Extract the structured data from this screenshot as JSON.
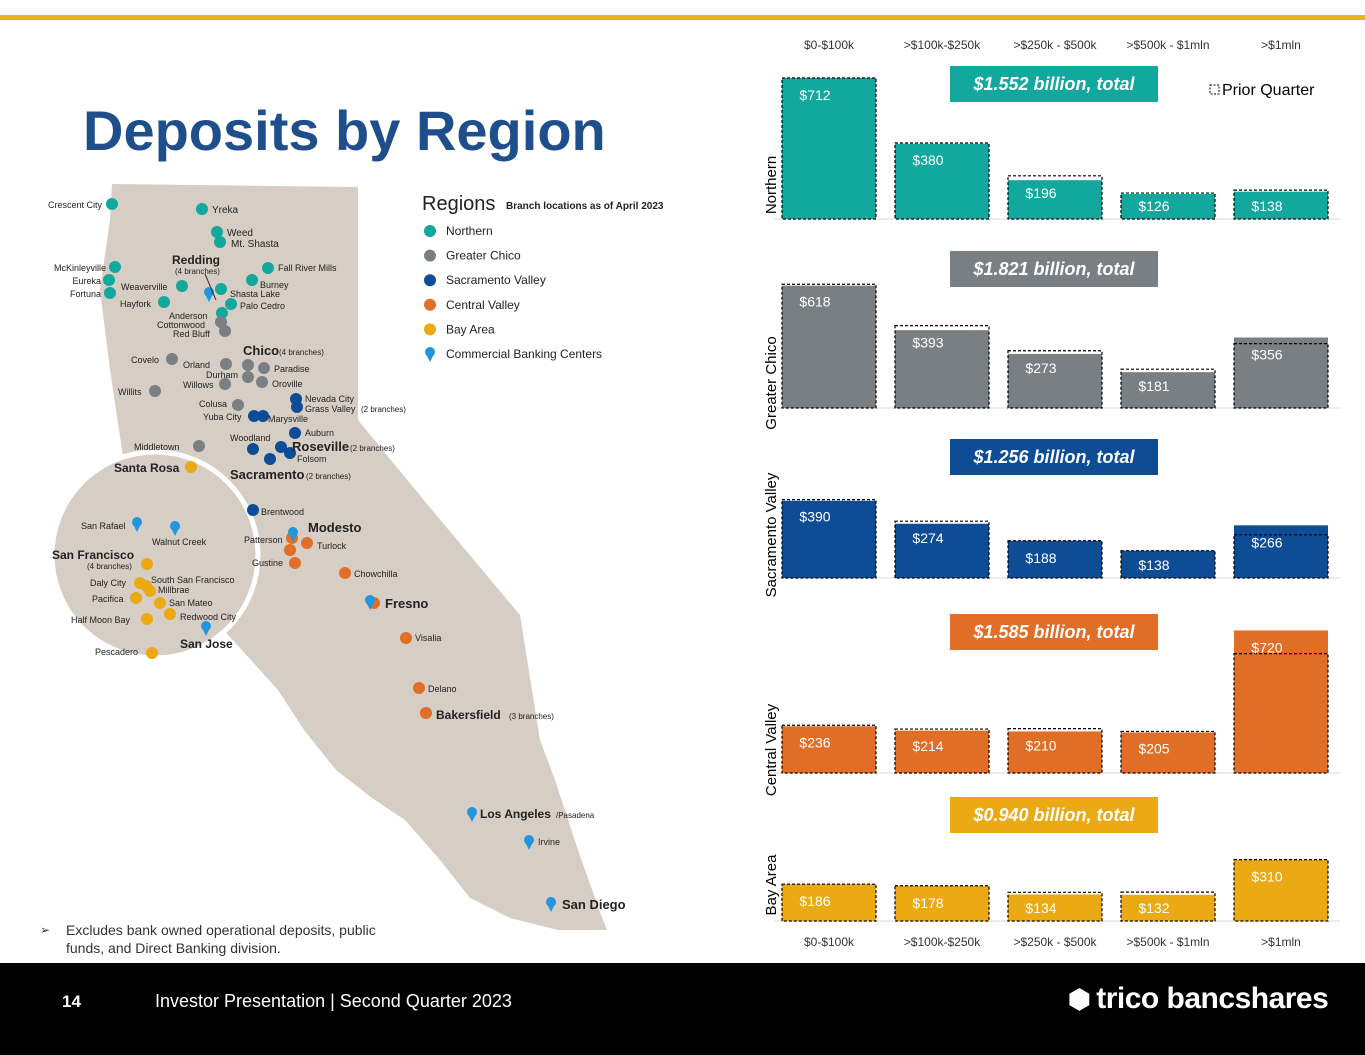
{
  "page": {
    "title": "Deposits by Region",
    "page_number": "14",
    "footer_text": "Investor Presentation | Second Quarter 2023",
    "brand": "trico bancshares",
    "note": "Excludes bank owned operational deposits, public funds, and Direct Banking division."
  },
  "colors": {
    "accent_line": "#E8B21E",
    "title": "#1F4E8C",
    "Northern": "#13A89E",
    "Greater Chico": "#7A7F84",
    "Sacramento Valley": "#0F4C96",
    "Central Valley": "#E06E27",
    "Bay Area": "#EBAA13",
    "Commercial Banking Centers": "#2196DD"
  },
  "map": {
    "legend_title": "Regions",
    "legend_subtitle": "Branch locations as of April 2023",
    "legend_items": [
      "Northern",
      "Greater Chico",
      "Sacramento Valley",
      "Central Valley",
      "Bay Area",
      "Commercial Banking Centers"
    ],
    "city_labels": [
      "Crescent City",
      "Yreka",
      "Weed",
      "Mt. Shasta",
      "Redding",
      "(4 branches)",
      "McKinleyville",
      "Eureka",
      "Fortuna",
      "Weaverville",
      "Hayfork",
      "Fall River Mills",
      "Burney",
      "Shasta Lake",
      "Palo Cedro",
      "Anderson",
      "Cottonwood",
      "Red Bluff",
      "Chico",
      "(4 branches)",
      "Covelo",
      "Orland",
      "Durham",
      "Paradise",
      "Willows",
      "Oroville",
      "Willits",
      "Colusa",
      "Yuba City",
      "Marysville",
      "Nevada City",
      "Grass Valley",
      "(2 branches)",
      "Woodland",
      "Auburn",
      "Roseville",
      "(2 branches)",
      "Middletown",
      "Folsom",
      "Sacramento",
      "(2 branches)",
      "Santa Rosa",
      "Brentwood",
      "San Rafael",
      "Walnut Creek",
      "San Francisco",
      "(4 branches)",
      "Daly City",
      "South San Francisco",
      "Millbrae",
      "Pacifica",
      "San Mateo",
      "Half Moon Bay",
      "Redwood City",
      "San Jose",
      "Pescadero",
      "Patterson",
      "Modesto",
      "Turlock",
      "Gustine",
      "Chowchilla",
      "Fresno",
      "Visalia",
      "Delano",
      "Bakersfield",
      "(3 branches)",
      "Los Angeles",
      "/Pasadena",
      "Irvine",
      "San Diego"
    ]
  },
  "chart_data": {
    "type": "bar",
    "categories": [
      "$0-$100k",
      ">$100k-$250k",
      ">$250k - $500k",
      ">$500k - $1mln",
      ">$1mln"
    ],
    "legend": "Prior Quarter",
    "panels": [
      {
        "name": "Northern",
        "total": "$1.552 billion, total",
        "values": [
          712,
          380,
          196,
          126,
          138
        ],
        "labels": [
          "$712",
          "$380",
          "$196",
          "$126",
          "$138"
        ],
        "prior": [
          712,
          384,
          218,
          131,
          146
        ]
      },
      {
        "name": "Greater Chico",
        "total": "$1.821 billion, total",
        "values": [
          618,
          393,
          273,
          181,
          356
        ],
        "labels": [
          "$618",
          "$393",
          "$273",
          "$181",
          "$356"
        ],
        "prior": [
          625,
          416,
          289,
          196,
          325
        ]
      },
      {
        "name": "Sacramento Valley",
        "total": "$1.256 billion, total",
        "values": [
          390,
          274,
          188,
          138,
          266
        ],
        "labels": [
          "$390",
          "$274",
          "$188",
          "$138",
          "$266"
        ],
        "prior": [
          396,
          287,
          188,
          138,
          218
        ]
      },
      {
        "name": "Central Valley",
        "total": "$1.585 billion, total",
        "values": [
          236,
          214,
          210,
          205,
          720
        ],
        "labels": [
          "$236",
          "$214",
          "$210",
          "$205",
          "$720"
        ],
        "prior": [
          241,
          222,
          224,
          210,
          603
        ]
      },
      {
        "name": "Bay Area",
        "total": "$0.940 billion, total",
        "values": [
          186,
          178,
          134,
          132,
          310
        ],
        "labels": [
          "$186",
          "$178",
          "$134",
          "$132",
          "$310"
        ],
        "prior": [
          186,
          178,
          145,
          146,
          310
        ]
      }
    ]
  }
}
